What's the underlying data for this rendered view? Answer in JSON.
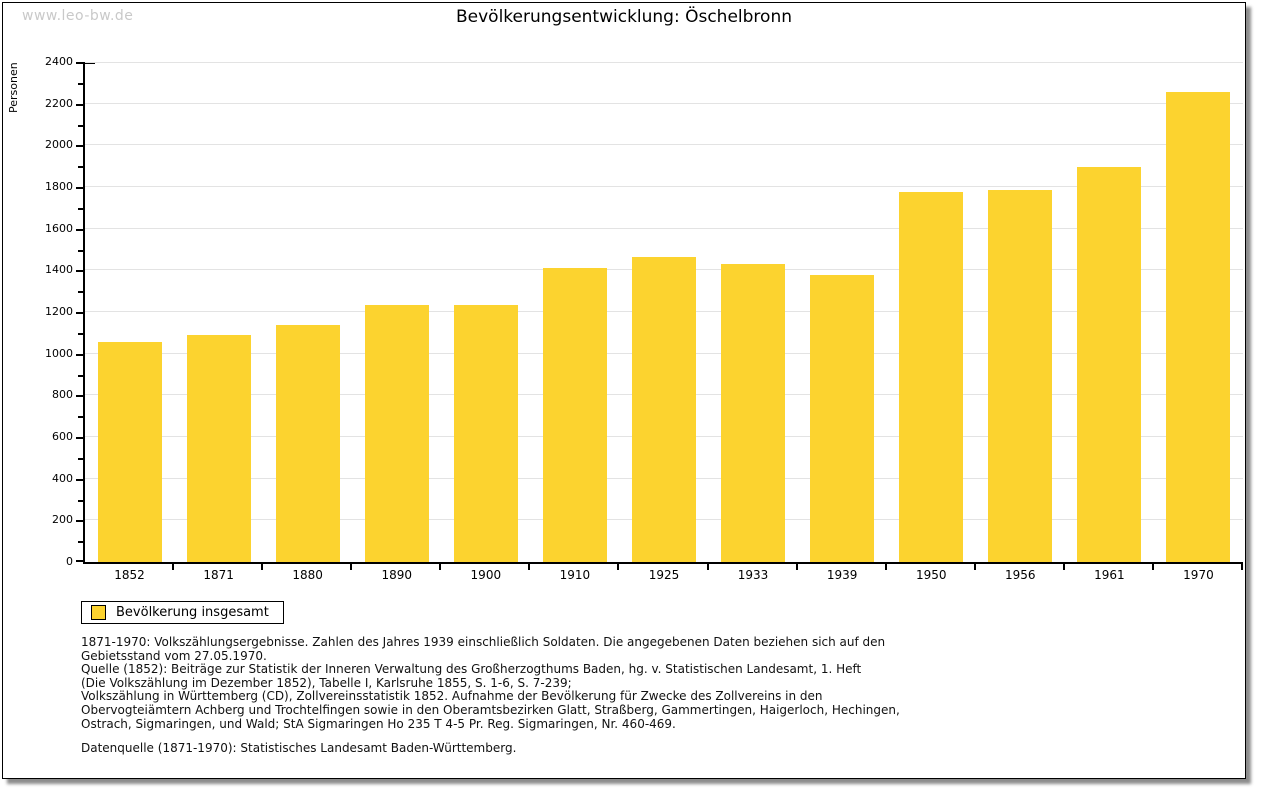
{
  "page": {
    "watermark": "www.leo-bw.de",
    "title": "Bevölkerungsentwicklung: Öschelbronn"
  },
  "legend": {
    "label": "Bevölkerung insgesamt"
  },
  "colors": {
    "bar": "#fcd32f",
    "grid": "#e3e3e3",
    "axis": "#000000",
    "watermark": "#c9c9c9"
  },
  "chart_data": {
    "type": "bar",
    "title": "Bevölkerungsentwicklung: Öschelbronn",
    "categories": [
      "1852",
      "1871",
      "1880",
      "1890",
      "1900",
      "1910",
      "1925",
      "1933",
      "1939",
      "1950",
      "1956",
      "1961",
      "1970"
    ],
    "values": [
      1055,
      1090,
      1140,
      1235,
      1235,
      1410,
      1465,
      1430,
      1380,
      1775,
      1785,
      1895,
      2255
    ],
    "series_name": "Bevölkerung insgesamt",
    "xlabel": "",
    "ylabel": "Personen",
    "ylim": [
      0,
      2400
    ],
    "ytick_major_step": 200,
    "ytick_minor_step": 100,
    "grid": true,
    "legend_position": "bottom-left",
    "bar_color": "#fcd32f"
  },
  "footnotes": {
    "lines": [
      "1871-1970: Volkszählungsergebnisse. Zahlen des Jahres 1939 einschließlich Soldaten. Die angegebenen Daten beziehen sich auf den",
      "Gebietsstand vom 27.05.1970.",
      "Quelle (1852): Beiträge zur Statistik der Inneren Verwaltung des Großherzogthums Baden, hg. v. Statistischen Landesamt, 1. Heft",
      "(Die Volkszählung im Dezember 1852), Tabelle I, Karlsruhe 1855, S. 1-6, S. 7-239;",
      "Volkszählung in Württemberg (CD), Zollvereinsstatistik 1852. Aufnahme der Bevölkerung für Zwecke des Zollvereins in den",
      "Obervogteiämtern Achberg und Trochtelfingen sowie in den Oberamtsbezirken Glatt, Straßberg, Gammertingen, Haigerloch, Hechingen,",
      "Ostrach, Sigmaringen, und Wald; StA Sigmaringen Ho 235 T 4-5 Pr. Reg. Sigmaringen, Nr. 460-469."
    ],
    "datasource": "Datenquelle (1871-1970): Statistisches Landesamt Baden-Württemberg."
  }
}
